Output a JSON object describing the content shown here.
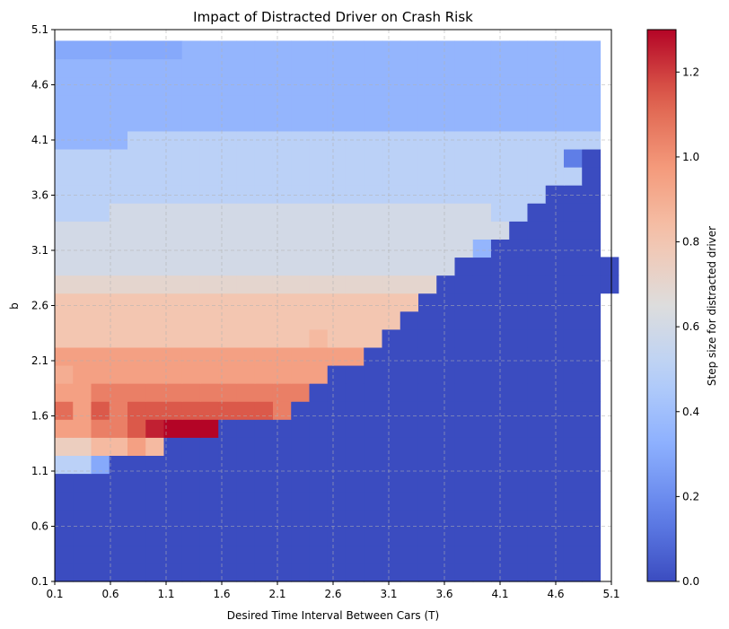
{
  "chart_data": {
    "type": "heatmap",
    "title": "Impact of Distracted Driver on Crash Risk",
    "xlabel": "Desired Time Interval Between Cars (T)",
    "ylabel": "b",
    "colorbar_label": "Step size for distracted driver",
    "xlim": [
      0.1,
      5.1
    ],
    "ylim": [
      0.1,
      5.1
    ],
    "x_ticks": [
      "0.1",
      "0.6",
      "1.1",
      "1.6",
      "2.1",
      "2.6",
      "3.1",
      "3.6",
      "4.1",
      "4.6",
      "5.1"
    ],
    "y_ticks": [
      "0.1",
      "0.6",
      "1.1",
      "1.6",
      "2.1",
      "2.6",
      "3.1",
      "3.6",
      "4.1",
      "4.6",
      "5.1"
    ],
    "colorbar_range": [
      0,
      1.3
    ],
    "colorbar_ticks": [
      "0.0",
      "0.2",
      "0.4",
      "0.6",
      "0.8",
      "1.0",
      "1.2"
    ],
    "colormap": "coolwarm",
    "grid": true,
    "cell_width": 0.1633,
    "cell_height": 0.1633,
    "x_start": 0.1,
    "y_start": 0.1,
    "values": [
      [
        0,
        0,
        0,
        0,
        0,
        0,
        0,
        0,
        0,
        0,
        0,
        0,
        0,
        0,
        0,
        0,
        0,
        0,
        0,
        0,
        0,
        0,
        0,
        0,
        0,
        0,
        0,
        0,
        0,
        0
      ],
      [
        0,
        0,
        0,
        0,
        0,
        0,
        0,
        0,
        0,
        0,
        0,
        0,
        0,
        0,
        0,
        0,
        0,
        0,
        0,
        0,
        0,
        0,
        0,
        0,
        0,
        0,
        0,
        0,
        0,
        0
      ],
      [
        0,
        0,
        0,
        0,
        0,
        0,
        0,
        0,
        0,
        0,
        0,
        0,
        0,
        0,
        0,
        0,
        0,
        0,
        0,
        0,
        0,
        0,
        0,
        0,
        0,
        0,
        0,
        0,
        0,
        0
      ],
      [
        0,
        0,
        0,
        0,
        0,
        0,
        0,
        0,
        0,
        0,
        0,
        0,
        0,
        0,
        0,
        0,
        0,
        0,
        0,
        0,
        0,
        0,
        0,
        0,
        0,
        0,
        0,
        0,
        0,
        0
      ],
      [
        0,
        0,
        0,
        0,
        0,
        0,
        0,
        0,
        0,
        0,
        0,
        0,
        0,
        0,
        0,
        0,
        0,
        0,
        0,
        0,
        0,
        0,
        0,
        0,
        0,
        0,
        0,
        0,
        0,
        0
      ],
      [
        0,
        0,
        0,
        0,
        0,
        0,
        0,
        0,
        0,
        0,
        0,
        0,
        0,
        0,
        0,
        0,
        0,
        0,
        0,
        0,
        0,
        0,
        0,
        0,
        0,
        0,
        0,
        0,
        0,
        0
      ],
      [
        0.5,
        0.5,
        0.3,
        0,
        0,
        0,
        0,
        0,
        0,
        0,
        0,
        0,
        0,
        0,
        0,
        0,
        0,
        0,
        0,
        0,
        0,
        0,
        0,
        0,
        0,
        0,
        0,
        0,
        0,
        0
      ],
      [
        0.75,
        0.75,
        0.85,
        0.85,
        0.95,
        0.85,
        0,
        0,
        0,
        0,
        0,
        0,
        0,
        0,
        0,
        0,
        0,
        0,
        0,
        0,
        0,
        0,
        0,
        0,
        0,
        0,
        0,
        0,
        0,
        0
      ],
      [
        0.95,
        0.95,
        1.05,
        1.05,
        1.15,
        1.25,
        1.3,
        1.3,
        1.3,
        0,
        0,
        0,
        0,
        0,
        0,
        0,
        0,
        0,
        0,
        0,
        0,
        0,
        0,
        0,
        0,
        0,
        0,
        0,
        0,
        0
      ],
      [
        1.1,
        0.95,
        1.15,
        1.05,
        1.15,
        1.15,
        1.15,
        1.15,
        1.15,
        1.15,
        1.15,
        1.15,
        1.05,
        0,
        0,
        0,
        0,
        0,
        0,
        0,
        0,
        0,
        0,
        0,
        0,
        0,
        0,
        0,
        0,
        0
      ],
      [
        0.95,
        0.95,
        1.05,
        1.05,
        1.05,
        1.05,
        1.05,
        1.05,
        1.05,
        1.05,
        1.05,
        1.05,
        1.05,
        1.05,
        0,
        0,
        0,
        0,
        0,
        0,
        0,
        0,
        0,
        0,
        0,
        0,
        0,
        0,
        0,
        0
      ],
      [
        0.9,
        0.95,
        0.95,
        0.95,
        0.95,
        0.95,
        0.95,
        0.95,
        0.95,
        0.95,
        0.95,
        0.95,
        0.95,
        0.95,
        0.95,
        0,
        0,
        0,
        0,
        0,
        0,
        0,
        0,
        0,
        0,
        0,
        0,
        0,
        0,
        0
      ],
      [
        0.95,
        0.95,
        0.95,
        0.95,
        0.95,
        0.95,
        0.95,
        0.95,
        0.95,
        0.95,
        0.95,
        0.95,
        0.95,
        0.95,
        0.95,
        0.95,
        0.95,
        0,
        0,
        0,
        0,
        0,
        0,
        0,
        0,
        0,
        0,
        0,
        0,
        0
      ],
      [
        0.8,
        0.8,
        0.8,
        0.8,
        0.8,
        0.8,
        0.8,
        0.8,
        0.8,
        0.8,
        0.8,
        0.8,
        0.8,
        0.8,
        0.85,
        0.8,
        0.8,
        0.8,
        0,
        0,
        0,
        0,
        0,
        0,
        0,
        0,
        0,
        0,
        0,
        0
      ],
      [
        0.8,
        0.8,
        0.8,
        0.8,
        0.8,
        0.8,
        0.8,
        0.8,
        0.8,
        0.8,
        0.8,
        0.8,
        0.8,
        0.8,
        0.8,
        0.8,
        0.8,
        0.8,
        0.8,
        0,
        0,
        0,
        0,
        0,
        0,
        0,
        0,
        0,
        0,
        0
      ],
      [
        0.8,
        0.8,
        0.8,
        0.8,
        0.8,
        0.8,
        0.8,
        0.8,
        0.8,
        0.8,
        0.8,
        0.8,
        0.8,
        0.8,
        0.8,
        0.8,
        0.8,
        0.8,
        0.8,
        0.8,
        0,
        0,
        0,
        0,
        0,
        0,
        0,
        0,
        0,
        0
      ],
      [
        0.7,
        0.7,
        0.7,
        0.7,
        0.7,
        0.7,
        0.7,
        0.7,
        0.7,
        0.7,
        0.7,
        0.7,
        0.7,
        0.7,
        0.7,
        0.7,
        0.7,
        0.7,
        0.7,
        0.7,
        0.7,
        0,
        0,
        0,
        0,
        0,
        0,
        0,
        0,
        0,
        0
      ],
      [
        0.6,
        0.6,
        0.6,
        0.6,
        0.6,
        0.6,
        0.6,
        0.6,
        0.6,
        0.6,
        0.6,
        0.6,
        0.6,
        0.6,
        0.6,
        0.6,
        0.6,
        0.6,
        0.6,
        0.6,
        0.6,
        0.6,
        0,
        0,
        0,
        0,
        0,
        0,
        0,
        0,
        0
      ],
      [
        0.6,
        0.6,
        0.6,
        0.6,
        0.6,
        0.6,
        0.6,
        0.6,
        0.6,
        0.6,
        0.6,
        0.6,
        0.6,
        0.6,
        0.6,
        0.6,
        0.6,
        0.6,
        0.6,
        0.6,
        0.6,
        0.6,
        0.6,
        0.35,
        0,
        0,
        0,
        0,
        0,
        0
      ],
      [
        0.6,
        0.6,
        0.6,
        0.6,
        0.6,
        0.6,
        0.6,
        0.6,
        0.6,
        0.6,
        0.6,
        0.6,
        0.6,
        0.6,
        0.6,
        0.6,
        0.6,
        0.6,
        0.6,
        0.6,
        0.6,
        0.6,
        0.6,
        0.6,
        0.6,
        0,
        0,
        0,
        0,
        0
      ],
      [
        0.5,
        0.5,
        0.5,
        0.6,
        0.6,
        0.6,
        0.6,
        0.6,
        0.6,
        0.6,
        0.6,
        0.6,
        0.6,
        0.6,
        0.6,
        0.6,
        0.6,
        0.6,
        0.6,
        0.6,
        0.6,
        0.6,
        0.6,
        0.6,
        0.5,
        0.5,
        0,
        0,
        0,
        0
      ],
      [
        0.5,
        0.5,
        0.5,
        0.5,
        0.5,
        0.5,
        0.5,
        0.5,
        0.5,
        0.5,
        0.5,
        0.5,
        0.5,
        0.5,
        0.5,
        0.5,
        0.5,
        0.5,
        0.5,
        0.5,
        0.5,
        0.5,
        0.5,
        0.5,
        0.5,
        0.5,
        0.5,
        0,
        0,
        0
      ],
      [
        0.5,
        0.5,
        0.5,
        0.5,
        0.5,
        0.5,
        0.5,
        0.5,
        0.5,
        0.5,
        0.5,
        0.5,
        0.5,
        0.5,
        0.5,
        0.5,
        0.5,
        0.5,
        0.5,
        0.5,
        0.5,
        0.5,
        0.5,
        0.5,
        0.5,
        0.5,
        0.5,
        0.5,
        0.5,
        0
      ],
      [
        0.5,
        0.5,
        0.5,
        0.5,
        0.5,
        0.5,
        0.5,
        0.5,
        0.5,
        0.5,
        0.5,
        0.5,
        0.5,
        0.5,
        0.5,
        0.5,
        0.5,
        0.5,
        0.5,
        0.5,
        0.5,
        0.5,
        0.5,
        0.5,
        0.5,
        0.5,
        0.5,
        0.5,
        0.15,
        0
      ],
      [
        0.35,
        0.35,
        0.35,
        0.35,
        0.5,
        0.5,
        0.5,
        0.5,
        0.5,
        0.5,
        0.5,
        0.5,
        0.5,
        0.5,
        0.5,
        0.5,
        0.5,
        0.5,
        0.5,
        0.5,
        0.5,
        0.5,
        0.5,
        0.5,
        0.5,
        0.5,
        0.5,
        0.5,
        0.5,
        0.5
      ],
      [
        0.35,
        0.35,
        0.35,
        0.35,
        0.35,
        0.35,
        0.35,
        0.35,
        0.35,
        0.35,
        0.35,
        0.35,
        0.35,
        0.35,
        0.35,
        0.35,
        0.35,
        0.35,
        0.35,
        0.35,
        0.35,
        0.35,
        0.35,
        0.35,
        0.35,
        0.35,
        0.35,
        0.35,
        0.35,
        0.35
      ],
      [
        0.35,
        0.35,
        0.35,
        0.35,
        0.35,
        0.35,
        0.35,
        0.35,
        0.35,
        0.35,
        0.35,
        0.35,
        0.35,
        0.35,
        0.35,
        0.35,
        0.35,
        0.35,
        0.35,
        0.35,
        0.35,
        0.35,
        0.35,
        0.35,
        0.35,
        0.35,
        0.35,
        0.35,
        0.35,
        0.35
      ],
      [
        0.35,
        0.35,
        0.35,
        0.35,
        0.35,
        0.35,
        0.35,
        0.35,
        0.35,
        0.35,
        0.35,
        0.35,
        0.35,
        0.35,
        0.35,
        0.35,
        0.35,
        0.35,
        0.35,
        0.35,
        0.35,
        0.35,
        0.35,
        0.35,
        0.35,
        0.35,
        0.35,
        0.35,
        0.35,
        0.35
      ],
      [
        0.35,
        0.35,
        0.35,
        0.35,
        0.35,
        0.35,
        0.35,
        0.35,
        0.35,
        0.35,
        0.35,
        0.35,
        0.35,
        0.35,
        0.35,
        0.35,
        0.35,
        0.35,
        0.35,
        0.35,
        0.35,
        0.35,
        0.35,
        0.35,
        0.35,
        0.35,
        0.35,
        0.35,
        0.35,
        0.35
      ],
      [
        0.3,
        0.3,
        0.3,
        0.3,
        0.3,
        0.3,
        0.3,
        0.35,
        0.35,
        0.35,
        0.35,
        0.35,
        0.35,
        0.35,
        0.35,
        0.35,
        0.35,
        0.35,
        0.35,
        0.35,
        0.35,
        0.35,
        0.35,
        0.35,
        0.35,
        0.35,
        0.35,
        0.35,
        0.35,
        0.35
      ]
    ]
  }
}
